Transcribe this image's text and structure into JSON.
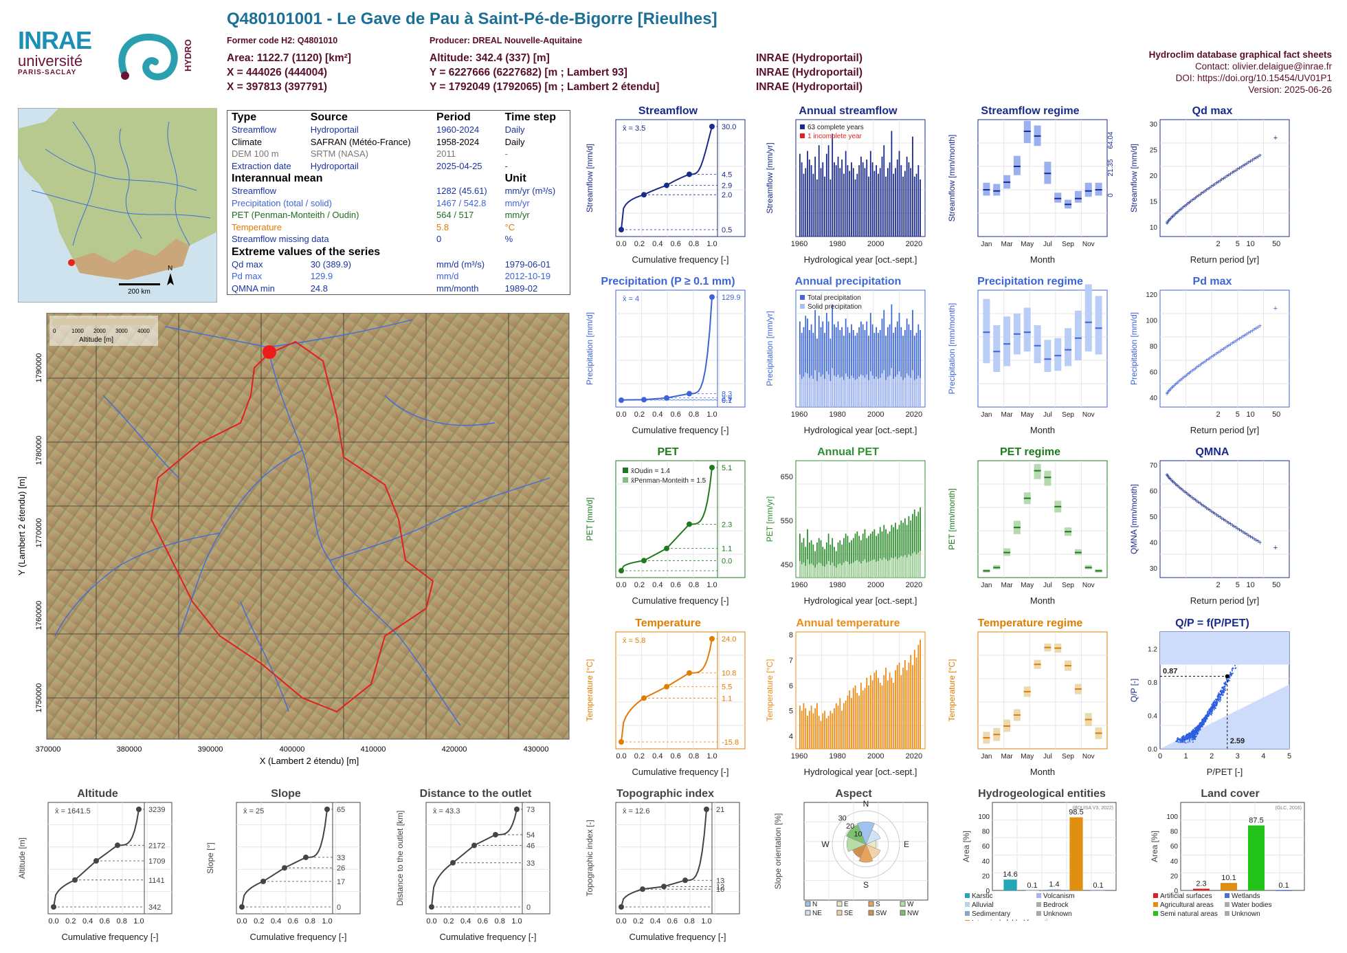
{
  "header": {
    "title": "Q480101001 - Le Gave de Pau à Saint-Pé-de-Bigorre [Rieulhes]",
    "former_code": "Former code H2: Q4801010",
    "producer": "Producer: DREAL Nouvelle-Aquitaine",
    "area": "Area: 1122.7 (1120) [km²]",
    "altitude": "Altitude: 342.4 (337) [m]",
    "x93": "X = 444026 (444004)",
    "y93": "Y = 6227666 (6227682) [m ; Lambert 93]",
    "x2e": "X = 397813 (397791)",
    "y2e": "Y = 1792049 (1792065) [m ; Lambert 2 étendu]",
    "src1": "INRAE (Hydroportail)",
    "src2": "INRAE (Hydroportail)",
    "src3": "INRAE (Hydroportail)",
    "db": "Hydroclim database graphical fact sheets",
    "contact": "Contact: olivier.delaigue@inrae.fr",
    "doi": "DOI: https://doi.org/10.15454/UV01P1",
    "version": "Version: 2025-06-26"
  },
  "logos": {
    "inrae": "INRAE",
    "universite": "université",
    "paris_saclay": "PARIS-SACLAY",
    "hydro": "HYDRO"
  },
  "info": {
    "head": [
      "Type",
      "Source",
      "Period",
      "Time step"
    ],
    "rows": [
      [
        "Streamflow",
        "Hydroportail",
        "1960-2024",
        "Daily"
      ],
      [
        "Climate",
        "SAFRAN (Météo-France)",
        "1958-2024",
        "Daily"
      ],
      [
        "DEM 100 m",
        "SRTM (NASA)",
        "2011",
        "-"
      ],
      [
        "Extraction date",
        "Hydroportail",
        "2025-04-25",
        "-"
      ]
    ],
    "mean_head": [
      "Interannual mean",
      "Unit"
    ],
    "mean_rows": [
      [
        "Streamflow",
        "1282 (45.61)",
        "mm/yr (m³/s)"
      ],
      [
        "Precipitation (total / solid)",
        "1467 / 542.8",
        "mm/yr"
      ],
      [
        "PET (Penman-Monteith / Oudin)",
        "564 / 517",
        "mm/yr"
      ],
      [
        "Temperature",
        "5.8",
        "°C"
      ],
      [
        "Streamflow missing data",
        "0",
        "%"
      ]
    ],
    "ext_head": "Extreme values of the series",
    "ext_rows": [
      [
        "Qd max",
        "30 (389.9)",
        "mm/d (m³/s)",
        "1979-06-01"
      ],
      [
        "Pd max",
        "129.9",
        "mm/d",
        "2012-10-19"
      ],
      [
        "QMNA min",
        "24.8",
        "mm/month",
        "1989-02"
      ]
    ]
  },
  "maps": {
    "scale": "200 km",
    "north": "N",
    "legend_title": "Altitude [m]",
    "legend_ticks": [
      "0",
      "1000",
      "2000",
      "3000",
      "4000"
    ],
    "xlabel": "X (Lambert 2 étendu) [m]",
    "ylabel": "Y (Lambert 2 étendu) [m]",
    "xticks": [
      "370000",
      "380000",
      "390000",
      "400000",
      "410000",
      "420000",
      "430000"
    ],
    "yticks": [
      "1790000",
      "1780000",
      "1770000",
      "1760000",
      "1750000"
    ]
  },
  "chart_data": [
    {
      "id": "streamflow",
      "type": "line",
      "title": "Streamflow",
      "xlabel": "Cumulative frequency [-]",
      "ylabel": "Streamflow [mm/d]",
      "mean": "x̄ = 3.5",
      "log": true,
      "ylim": [
        0.5,
        30
      ],
      "right_ticks": [
        "30.0",
        "4.5",
        "2.9",
        "2.0",
        "0.5"
      ],
      "x": [
        0,
        0.25,
        0.5,
        0.75,
        1
      ],
      "y": [
        0.5,
        2.0,
        2.9,
        4.5,
        30.0
      ]
    },
    {
      "id": "annual_streamflow",
      "type": "bar",
      "title": "Annual streamflow",
      "xlabel": "Hydrological year [oct.-sept.]",
      "ylabel": "Streamflow [mm/yr]",
      "legend": [
        "63 complete years",
        "1 incomplete year"
      ],
      "ylim": [
        0,
        2000
      ],
      "x_ticks": [
        "1960",
        "1980",
        "2000",
        "2020"
      ],
      "years": [
        1960,
        2023
      ],
      "values": [
        1450,
        1300,
        1100,
        1200,
        1500,
        1350,
        1250,
        1100,
        1400,
        1000,
        1600,
        1200,
        1300,
        1050,
        1450,
        1600,
        1000,
        1800,
        1300,
        1250,
        1400,
        1200,
        1350,
        1100,
        1500,
        1250,
        1150,
        1300,
        1200,
        1000,
        1100,
        1250,
        1400,
        1300,
        1200,
        1350,
        1050,
        1500,
        1300,
        1150,
        1250,
        1100,
        1200,
        1400,
        1600,
        1050,
        1200,
        1300,
        1850,
        1100,
        1200,
        1350,
        1500,
        1250,
        1050,
        1150,
        1400,
        1300,
        1200,
        1750,
        1050,
        1100,
        1250,
        1000
      ]
    },
    {
      "id": "streamflow_regime",
      "type": "box",
      "title": "Streamflow regime",
      "xlabel": "Month",
      "ylabel": "Streamflow [mm/month]",
      "ylim": [
        0,
        200
      ],
      "right_ticks": [
        "64.04",
        "21.35",
        "0"
      ],
      "months": [
        "Jan",
        "Mar",
        "May",
        "Jul",
        "Sep",
        "Nov"
      ],
      "median": [
        80,
        78,
        93,
        120,
        180,
        172,
        108,
        65,
        55,
        65,
        78,
        80
      ],
      "q1": [
        70,
        70,
        82,
        105,
        160,
        155,
        90,
        58,
        48,
        58,
        68,
        70
      ],
      "q3": [
        92,
        90,
        105,
        138,
        198,
        190,
        128,
        75,
        63,
        78,
        92,
        92
      ]
    },
    {
      "id": "qd_max",
      "type": "scatter",
      "title": "Qd max",
      "xlabel": "Return period [yr]",
      "ylabel": "Streamflow [mm/d]",
      "ylim": [
        5,
        32
      ],
      "x_ticks": [
        "2",
        "5",
        "10",
        "50"
      ],
      "y_ticks": [
        "10",
        "15",
        "20",
        "25",
        "30"
      ]
    },
    {
      "id": "precipitation",
      "type": "line",
      "title": "Precipitation (P ≥ 0.1 mm)",
      "xlabel": "Cumulative frequency [-]",
      "ylabel": "Precipitation [mm/d]",
      "mean": "x̄ = 4",
      "right_ticks": [
        "129.9",
        "8.3",
        "2.9",
        "0.7",
        "0.1"
      ],
      "x": [
        0,
        0.25,
        0.5,
        0.75,
        1
      ],
      "y": [
        0.1,
        0.7,
        2.9,
        8.3,
        129.9
      ]
    },
    {
      "id": "annual_precipitation",
      "type": "bar",
      "title": "Annual precipitation",
      "xlabel": "Hydrological year [oct.-sept.]",
      "ylabel": "Precipitation [mm/yr]",
      "legend": [
        "Total precipitation",
        "Solid precipitation"
      ],
      "ylim": [
        0,
        2000
      ],
      "x_ticks": [
        "1960",
        "1980",
        "2000",
        "2020"
      ],
      "values": [
        1500,
        1300,
        1400,
        1600,
        1550,
        1350,
        1450,
        1300,
        1700,
        1200,
        1600,
        1400,
        1500,
        1300,
        1650,
        1500,
        1200,
        1800,
        1450,
        1400,
        1500,
        1350,
        1400,
        1250,
        1550,
        1400,
        1300,
        1450,
        1350,
        1250,
        1300,
        1400,
        1500,
        1450,
        1350,
        1500,
        1250,
        1650,
        1450,
        1300,
        1400,
        1300,
        1350,
        1550,
        1700,
        1250,
        1400,
        1450,
        1800,
        1300,
        1400,
        1500,
        1650,
        1400,
        1250,
        1350,
        1550,
        1450,
        1350,
        1700,
        1250,
        1300,
        1450,
        1350
      ]
    },
    {
      "id": "precipitation_regime",
      "type": "box",
      "title": "Precipitation regime",
      "xlabel": "Month",
      "ylabel": "Precipitation [mm/month]",
      "ylim": [
        0,
        200
      ],
      "months": [
        "Jan",
        "Mar",
        "May",
        "Jul",
        "Sep",
        "Nov"
      ],
      "median": [
        128,
        95,
        108,
        125,
        128,
        105,
        82,
        88,
        98,
        118,
        145,
        135
      ],
      "q1": [
        75,
        60,
        70,
        90,
        95,
        75,
        60,
        62,
        70,
        80,
        95,
        90
      ],
      "q3": [
        185,
        140,
        155,
        160,
        170,
        140,
        115,
        118,
        135,
        165,
        210,
        190
      ]
    },
    {
      "id": "pd_max",
      "type": "scatter",
      "title": "Pd max",
      "xlabel": "Return period [yr]",
      "ylabel": "Precipitation [mm/d]",
      "x_ticks": [
        "2",
        "5",
        "10",
        "50"
      ],
      "y_ticks": [
        "40",
        "60",
        "80",
        "100",
        "120"
      ]
    },
    {
      "id": "pet",
      "type": "line",
      "title": "PET",
      "xlabel": "Cumulative frequency [-]",
      "ylabel": "PET [mm/d]",
      "legend": [
        "x̄Oudin = 1.4",
        "x̄Penman-Monteith = 1.5"
      ],
      "ylim": [
        0,
        8
      ],
      "right_ticks": [
        "5.1",
        "2.3",
        "1.1",
        "0.0"
      ],
      "x": [
        0,
        0.25,
        0.5,
        0.75,
        1
      ],
      "y": [
        0.0,
        0.5,
        1.1,
        2.3,
        5.1
      ]
    },
    {
      "id": "annual_pet",
      "type": "bar",
      "title": "Annual PET",
      "xlabel": "Hydrological year [oct.-sept.]",
      "ylabel": "PET [mm/yr]",
      "ylim": [
        420,
        680
      ],
      "x_ticks": [
        "1960",
        "1980",
        "2000",
        "2020"
      ],
      "y_ticks": [
        "450",
        "550",
        "650"
      ],
      "values": [
        520,
        500,
        510,
        490,
        530,
        500,
        505,
        495,
        480,
        500,
        510,
        505,
        490,
        485,
        500,
        520,
        495,
        510,
        490,
        480,
        500,
        505,
        495,
        510,
        520,
        515,
        500,
        505,
        510,
        520,
        525,
        515,
        505,
        520,
        530,
        510,
        515,
        520,
        525,
        530,
        515,
        520,
        535,
        525,
        540,
        530,
        520,
        525,
        540,
        535,
        545,
        530,
        540,
        550,
        545,
        555,
        540,
        560,
        550,
        565,
        575,
        560,
        570,
        580
      ]
    },
    {
      "id": "pet_regime",
      "type": "box",
      "title": "PET regime",
      "xlabel": "Month",
      "ylabel": "PET [mm/month]",
      "ylim": [
        0,
        140
      ],
      "months": [
        "Jan",
        "Mar",
        "May",
        "Jul",
        "Sep",
        "Nov"
      ],
      "median": [
        8,
        12,
        30,
        60,
        95,
        128,
        120,
        85,
        55,
        30,
        12,
        8
      ],
      "q1": [
        6,
        10,
        26,
        52,
        88,
        118,
        110,
        78,
        50,
        27,
        10,
        6
      ],
      "q3": [
        10,
        15,
        35,
        68,
        102,
        136,
        128,
        92,
        60,
        34,
        15,
        10
      ]
    },
    {
      "id": "qmna",
      "type": "scatter",
      "title": "QMNA",
      "xlabel": "Return period [yr]",
      "ylabel": "QMNA [mm/month]",
      "x_ticks": [
        "2",
        "5",
        "10",
        "50"
      ],
      "y_ticks": [
        "30",
        "40",
        "50",
        "60",
        "70"
      ]
    },
    {
      "id": "temperature",
      "type": "line",
      "title": "Temperature",
      "xlabel": "Cumulative frequency [-]",
      "ylabel": "Temperature [°C]",
      "mean": "x̄ = 5.8",
      "ylim": [
        -16,
        24
      ],
      "right_ticks": [
        "24.0",
        "10.8",
        "5.5",
        "1.1",
        "-15.8"
      ],
      "x": [
        0,
        0.25,
        0.5,
        0.75,
        1
      ],
      "y": [
        -15.8,
        1.1,
        5.5,
        10.8,
        24.0
      ]
    },
    {
      "id": "annual_temperature",
      "type": "bar",
      "title": "Annual temperature",
      "xlabel": "Hydrological year [oct.-sept.]",
      "ylabel": "Temperature [°C]",
      "ylim": [
        3.5,
        8
      ],
      "x_ticks": [
        "1960",
        "1980",
        "2000",
        "2020"
      ],
      "y_ticks": [
        "4",
        "5",
        "6",
        "7",
        "8"
      ],
      "values": [
        5.2,
        5.0,
        5.3,
        5.1,
        4.8,
        5.0,
        5.2,
        4.9,
        5.1,
        5.3,
        4.8,
        4.6,
        4.9,
        5.0,
        4.7,
        4.8,
        5.0,
        4.9,
        5.1,
        5.3,
        5.2,
        5.5,
        5.0,
        5.3,
        5.4,
        5.6,
        5.8,
        5.5,
        5.9,
        6.0,
        5.7,
        5.6,
        6.1,
        5.8,
        5.9,
        6.3,
        6.0,
        6.4,
        6.2,
        6.5,
        6.6,
        6.3,
        6.1,
        6.0,
        6.4,
        6.7,
        6.2,
        6.5,
        6.3,
        6.1,
        6.6,
        6.8,
        6.9,
        6.4,
        6.7,
        7.0,
        6.6,
        6.9,
        7.2,
        6.8,
        7.4,
        7.1,
        7.6,
        7.8
      ]
    },
    {
      "id": "temperature_regime",
      "type": "box",
      "title": "Temperature regime",
      "xlabel": "Month",
      "ylabel": "Temperature [°C]",
      "ylim": [
        -2,
        16
      ],
      "months": [
        "Jan",
        "Mar",
        "May",
        "Jul",
        "Sep",
        "Nov"
      ],
      "median": [
        -0.3,
        0.2,
        1.5,
        3.2,
        6.8,
        11.0,
        13.6,
        13.5,
        10.8,
        7.2,
        2.5,
        0.4
      ],
      "q1": [
        -1.2,
        -0.8,
        0.6,
        2.3,
        6.0,
        10.3,
        13.0,
        12.8,
        10.0,
        6.4,
        1.5,
        -0.5
      ],
      "q3": [
        0.6,
        1.2,
        2.5,
        4.1,
        7.6,
        11.7,
        14.2,
        14.2,
        11.6,
        8.0,
        3.5,
        1.3
      ]
    },
    {
      "id": "qp_ppet",
      "type": "scatter",
      "title": "Q/P = f(P/PET)",
      "xlabel": "P/PET [-]",
      "ylabel": "Q/P [-]",
      "xlim": [
        0,
        5
      ],
      "ylim": [
        0,
        1.4
      ],
      "annot": [
        "0.87",
        "2.59"
      ]
    },
    {
      "id": "altitude",
      "type": "line",
      "title": "Altitude",
      "xlabel": "Cumulative frequency [-]",
      "ylabel": "Altitude [m]",
      "mean": "x̄ = 1641.5",
      "right_ticks": [
        "3239",
        "2172",
        "1709",
        "1141",
        "342"
      ],
      "x": [
        0,
        0.25,
        0.5,
        0.75,
        1
      ],
      "y": [
        342,
        1141,
        1709,
        2172,
        3239
      ]
    },
    {
      "id": "slope",
      "type": "line",
      "title": "Slope",
      "xlabel": "Cumulative frequency [-]",
      "ylabel": "Slope [°]",
      "mean": "x̄ = 25",
      "right_ticks": [
        "65",
        "33",
        "26",
        "17",
        "0"
      ],
      "x": [
        0,
        0.25,
        0.5,
        0.75,
        1
      ],
      "y": [
        0,
        17,
        26,
        33,
        65
      ]
    },
    {
      "id": "distance",
      "type": "line",
      "title": "Distance to the outlet",
      "xlabel": "Cumulative frequency [-]",
      "ylabel": "Distance to the outlet [km]",
      "mean": "x̄ = 43.3",
      "right_ticks": [
        "73",
        "54",
        "46",
        "33",
        "0"
      ],
      "x": [
        0,
        0.25,
        0.5,
        0.75,
        1
      ],
      "y": [
        0,
        33,
        46,
        54,
        73
      ]
    },
    {
      "id": "topo",
      "type": "line",
      "title": "Topographic index",
      "xlabel": "Cumulative frequency [-]",
      "ylabel": "Topographic index [-]",
      "mean": "x̄ = 12.6",
      "right_ticks": [
        "21",
        "13",
        "12",
        "10"
      ],
      "x": [
        0,
        0.25,
        0.5,
        0.75,
        1
      ],
      "y": [
        10,
        12,
        12.3,
        13,
        21
      ]
    },
    {
      "id": "aspect",
      "type": "pie",
      "title": "Aspect",
      "ylabel": "Slope orientation [%]",
      "dirs": [
        "N",
        "NE",
        "E",
        "SE",
        "S",
        "SW",
        "W",
        "NW"
      ],
      "values": [
        20,
        14,
        9,
        14,
        16,
        13,
        17,
        19
      ],
      "ticks": [
        "10",
        "20",
        "30"
      ],
      "legend": [
        "N",
        "E",
        "S",
        "W",
        "NE",
        "SE",
        "SW",
        "NW"
      ]
    },
    {
      "id": "hydrogeo",
      "type": "bar",
      "title": "Hydrogeological entities",
      "ylabel": "Area [%]",
      "source": "(BDLISA V3, 2022)",
      "values": [
        14.6,
        0.1,
        1.4,
        98.5,
        0.1
      ],
      "labels": [
        "14.6",
        "0.1",
        "1.4",
        "98.5",
        "0.1"
      ],
      "legend": [
        "Karstic",
        "Alluvial",
        "Sedimentary",
        "Intensively folded formation",
        "Volcanism",
        "Bedrock",
        "Unknown"
      ]
    },
    {
      "id": "landcover",
      "type": "bar",
      "title": "Land cover",
      "ylabel": "Area [%]",
      "source": "(GLC, 2016)",
      "values": [
        2.3,
        10.1,
        87.5,
        0.1
      ],
      "labels": [
        "2.3",
        "10.1",
        "87.5",
        "0.1"
      ],
      "legend": [
        "Artificial surfaces",
        "Agricultural areas",
        "Semi natural areas",
        "Wetlands",
        "Water bodies",
        "Unknown"
      ]
    }
  ]
}
